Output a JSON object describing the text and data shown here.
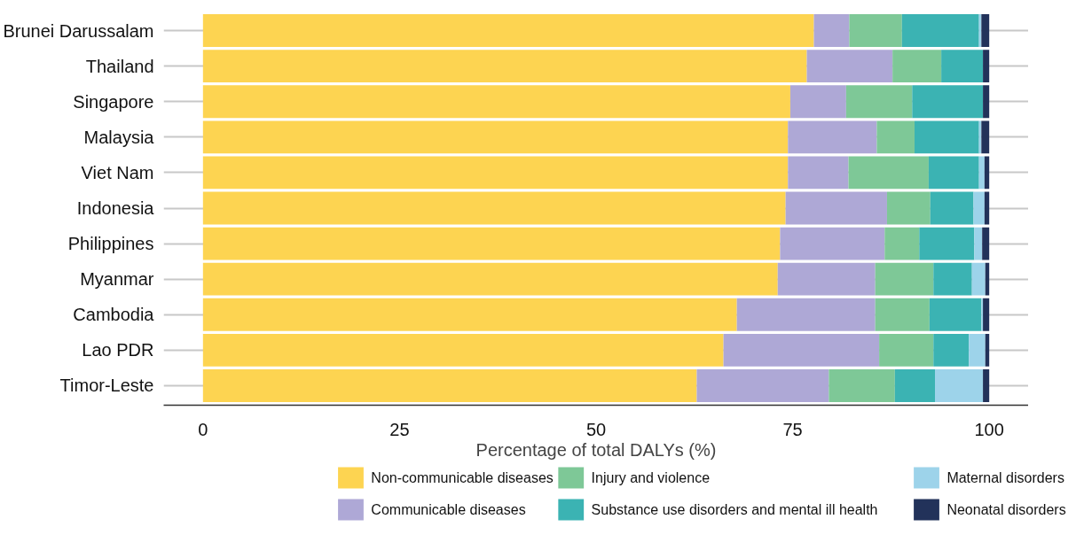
{
  "chart_data": {
    "type": "bar",
    "orientation": "horizontal",
    "stacked": true,
    "xlabel": "Percentage of total DALYs (%)",
    "categories": [
      "Brunei Darussalam",
      "Thailand",
      "Singapore",
      "Malaysia",
      "Viet Nam",
      "Indonesia",
      "Philippines",
      "Myanmar",
      "Cambodia",
      "Lao PDR",
      "Timor-Leste"
    ],
    "series": [
      {
        "name": "Non-communicable diseases",
        "color": "#fdd451",
        "values": [
          77.7,
          76.8,
          74.7,
          74.4,
          74.4,
          74.1,
          73.4,
          73.1,
          67.9,
          66.2,
          62.8
        ]
      },
      {
        "name": "Communicable diseases",
        "color": "#aea8d6",
        "values": [
          4.5,
          10.9,
          7.1,
          11.3,
          7.7,
          12.9,
          13.3,
          12.4,
          17.6,
          19.8,
          16.8
        ]
      },
      {
        "name": "Injury and violence",
        "color": "#7ec897",
        "values": [
          6.7,
          6.2,
          8.4,
          4.8,
          10.2,
          5.5,
          4.4,
          7.4,
          6.9,
          6.9,
          8.4
        ]
      },
      {
        "name": "Substance use disorders and mental ill health",
        "color": "#3bb3b3",
        "values": [
          9.8,
          5.3,
          9.0,
          8.2,
          6.4,
          5.5,
          7.0,
          4.9,
          6.6,
          4.5,
          5.1
        ]
      },
      {
        "name": "Maternal disorders",
        "color": "#9dd3ea",
        "values": [
          0.3,
          0,
          0,
          0.3,
          0.7,
          1.4,
          1.0,
          1.7,
          0.2,
          2.1,
          6.1
        ]
      },
      {
        "name": "Neonatal disorders",
        "color": "#22325a",
        "values": [
          1.0,
          0.8,
          0.8,
          1.0,
          0.6,
          0.6,
          0.9,
          0.5,
          0.8,
          0.5,
          0.8
        ]
      }
    ],
    "xlim": [
      -5,
      105
    ],
    "xticks": [
      0,
      25,
      50,
      75,
      100
    ],
    "grid": "y",
    "legend": "bottom"
  }
}
